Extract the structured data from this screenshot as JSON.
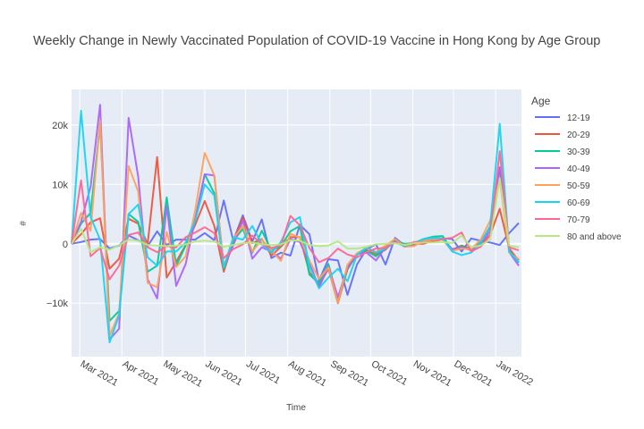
{
  "chart_data": {
    "type": "line",
    "title": "Weekly Change in Newly Vaccinated Population of COVID-19 Vaccine in Hong Kong by Age Group",
    "xlabel": "Time",
    "ylabel": "#",
    "x_tick_labels": [
      "Mar 2021",
      "Apr 2021",
      "May 2021",
      "Jun 2021",
      "Jul 2021",
      "Aug 2021",
      "Sep 2021",
      "Oct 2021",
      "Nov 2021",
      "Dec 2021",
      "Jan 2022"
    ],
    "y_ticks": [
      -10000,
      0,
      10000,
      20000
    ],
    "y_tick_labels": [
      "−10k",
      "0",
      "10k",
      "20k"
    ],
    "ylim": [
      -19000,
      26000
    ],
    "xlim": [
      "2021-02-23",
      "2022-01-20"
    ],
    "grid": true,
    "legend_title": "Age",
    "legend_position": "right",
    "x": [
      "2021-02-23",
      "2021-03-02",
      "2021-03-09",
      "2021-03-16",
      "2021-03-23",
      "2021-03-30",
      "2021-04-06",
      "2021-04-13",
      "2021-04-20",
      "2021-04-27",
      "2021-05-04",
      "2021-05-11",
      "2021-05-18",
      "2021-05-25",
      "2021-06-01",
      "2021-06-08",
      "2021-06-15",
      "2021-06-22",
      "2021-06-29",
      "2021-07-06",
      "2021-07-13",
      "2021-07-20",
      "2021-07-27",
      "2021-08-03",
      "2021-08-10",
      "2021-08-17",
      "2021-08-24",
      "2021-08-31",
      "2021-09-07",
      "2021-09-14",
      "2021-09-21",
      "2021-09-28",
      "2021-10-05",
      "2021-10-12",
      "2021-10-19",
      "2021-10-26",
      "2021-11-02",
      "2021-11-09",
      "2021-11-16",
      "2021-11-23",
      "2021-11-30",
      "2021-12-07",
      "2021-12-14",
      "2021-12-21",
      "2021-12-28",
      "2022-01-04",
      "2022-01-11",
      "2022-01-18"
    ],
    "series": [
      {
        "name": "12-19",
        "color": "#636efa",
        "values": [
          0,
          300,
          700,
          800,
          -800,
          -300,
          1400,
          600,
          -400,
          2100,
          -200,
          700,
          700,
          700,
          1800,
          600,
          7300,
          500,
          4800,
          400,
          4100,
          -2400,
          -1500,
          -2000,
          3200,
          1600,
          -6200,
          -2600,
          -2800,
          -8600,
          -3500,
          -900,
          -100,
          -3500,
          1000,
          -300,
          -200,
          500,
          500,
          900,
          800,
          -1300,
          900,
          500,
          200,
          -200,
          1800,
          3500
        ]
      },
      {
        "name": "20-29",
        "color": "#ef553b",
        "values": [
          0,
          1600,
          3600,
          4300,
          -4200,
          -2500,
          4200,
          3400,
          0,
          14600,
          -5700,
          -3000,
          -200,
          3200,
          7200,
          3000,
          -4700,
          400,
          4400,
          100,
          800,
          -2000,
          -500,
          1100,
          1100,
          -4800,
          -7000,
          -4200,
          -10000,
          -4300,
          -1800,
          -1100,
          -1800,
          -1000,
          700,
          -500,
          0,
          0,
          500,
          900,
          -1000,
          -300,
          -900,
          0,
          1500,
          5900,
          -800,
          -2800
        ]
      },
      {
        "name": "30-39",
        "color": "#00cc96",
        "values": [
          0,
          3400,
          5200,
          20200,
          -13000,
          -11300,
          5000,
          3700,
          -4700,
          -3700,
          7800,
          -3700,
          -300,
          4100,
          11700,
          8500,
          -4200,
          500,
          2500,
          -1500,
          2200,
          -1100,
          -400,
          2100,
          3000,
          -5200,
          -6600,
          -3400,
          -9600,
          -4100,
          -1800,
          -1200,
          -2100,
          -700,
          500,
          0,
          100,
          800,
          1200,
          1300,
          -1100,
          -400,
          -1100,
          400,
          2700,
          12600,
          -1200,
          -3200
        ]
      },
      {
        "name": "40-49",
        "color": "#ab63fa",
        "values": [
          0,
          3700,
          9600,
          23400,
          -16100,
          -14300,
          21200,
          11300,
          -6000,
          -9200,
          6400,
          -7100,
          -3400,
          4200,
          11700,
          11500,
          -3800,
          -300,
          3900,
          -2500,
          -600,
          -1300,
          -2500,
          800,
          300,
          -3200,
          -7400,
          -3800,
          -9000,
          -4000,
          -1700,
          -1500,
          -2800,
          -600,
          400,
          -200,
          100,
          600,
          800,
          700,
          -900,
          -600,
          -1100,
          100,
          2100,
          12900,
          -1400,
          -3700
        ]
      },
      {
        "name": "50-59",
        "color": "#ffa15a",
        "values": [
          0,
          5200,
          2200,
          20700,
          -15500,
          -11700,
          13100,
          8800,
          -6600,
          -7300,
          2000,
          -3900,
          -2100,
          5700,
          15300,
          11500,
          -3900,
          900,
          3000,
          -1300,
          700,
          -1100,
          -2900,
          1700,
          1000,
          -2800,
          -5900,
          -4000,
          -9900,
          -3500,
          -1600,
          -700,
          -1400,
          -300,
          800,
          -500,
          -400,
          500,
          700,
          700,
          -1200,
          -800,
          -900,
          700,
          3900,
          10800,
          -1500,
          -2600
        ]
      },
      {
        "name": "60-69",
        "color": "#19d3f3",
        "values": [
          0,
          22400,
          4500,
          700,
          -16600,
          -12000,
          5000,
          6600,
          -2300,
          -3700,
          -1300,
          -1300,
          200,
          3900,
          10000,
          8100,
          -4000,
          1100,
          700,
          3000,
          -100,
          -1500,
          300,
          3600,
          4500,
          -3800,
          -7500,
          -5700,
          -4200,
          -6300,
          -1900,
          -600,
          -1500,
          -800,
          200,
          -400,
          100,
          800,
          1000,
          900,
          -1300,
          -1900,
          -1500,
          100,
          3000,
          20200,
          -1300,
          -3100
        ]
      },
      {
        "name": "70-79",
        "color": "#ff6692",
        "values": [
          0,
          10700,
          -2100,
          -700,
          -6000,
          -3700,
          1500,
          1900,
          -600,
          -1400,
          -400,
          -600,
          1100,
          1900,
          2800,
          1800,
          -2400,
          -900,
          -100,
          1400,
          -100,
          -700,
          -300,
          4700,
          3100,
          -700,
          -3100,
          -2400,
          -800,
          -1800,
          -2300,
          -1400,
          -800,
          -700,
          200,
          -300,
          300,
          300,
          300,
          800,
          1000,
          1900,
          -1300,
          -500,
          1400,
          15600,
          -600,
          -1100
        ]
      },
      {
        "name": "80 and above",
        "color": "#b6e880",
        "values": [
          0,
          2500,
          -1400,
          -600,
          -1000,
          -200,
          700,
          500,
          -200,
          -300,
          -400,
          -300,
          -100,
          400,
          500,
          400,
          -500,
          -200,
          100,
          200,
          -100,
          -200,
          -100,
          600,
          500,
          -200,
          -400,
          -300,
          400,
          -800,
          -800,
          -500,
          -100,
          0,
          100,
          -200,
          100,
          200,
          200,
          300,
          100,
          1400,
          -600,
          -300,
          700,
          11000,
          -300,
          -600
        ]
      }
    ]
  }
}
